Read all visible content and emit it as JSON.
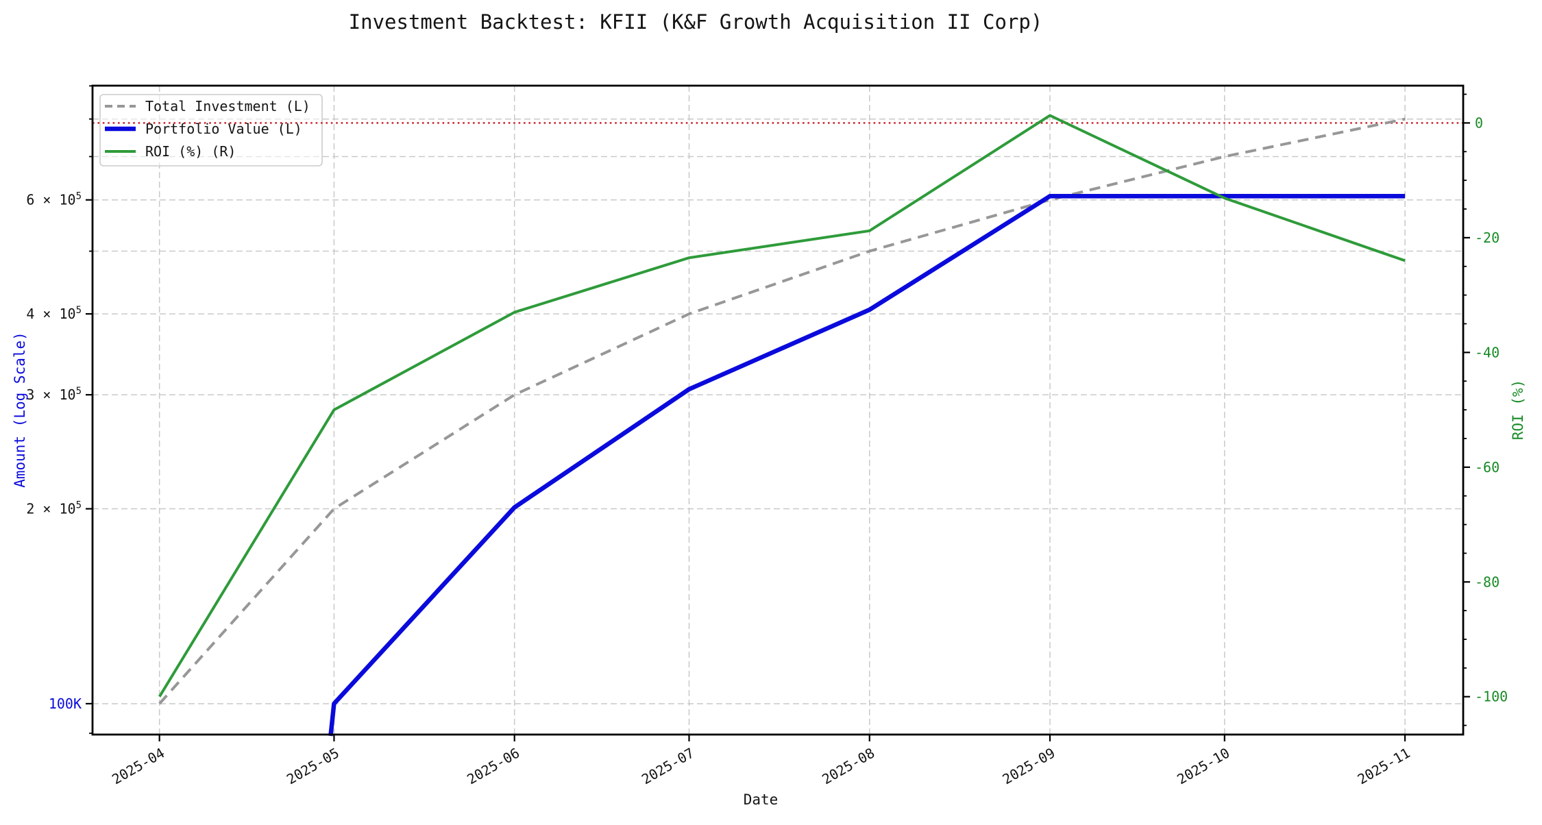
{
  "title": "Investment Backtest: KFII (K&F Growth Acquisition II Corp)",
  "chart_data": {
    "type": "line",
    "title": "Investment Backtest: KFII (K&F Growth Acquisition II Corp)",
    "x_label": "Date",
    "y_left_label": "Amount (Log Scale)",
    "y_right_label": "ROI (%)",
    "y_left_scale": "log",
    "y_right_scale": "linear",
    "grid": true,
    "legend_position": "upper left",
    "x_tick_labels": [
      "2025-04",
      "2025-05",
      "2025-06",
      "2025-07",
      "2025-08",
      "2025-09",
      "2025-10",
      "2025-11"
    ],
    "x_day_offsets": [
      0,
      30,
      61,
      91,
      122,
      153,
      183,
      214
    ],
    "x_range_days": [
      -11.5,
      224
    ],
    "y_left_range": [
      89600,
      900800
    ],
    "y_right_range": [
      -106.6,
      6.5
    ],
    "y_left_ticks": [
      {
        "value": 600000,
        "mantissa": "6 × 10",
        "exponent": "5",
        "color": "#141414"
      },
      {
        "value": 400000,
        "mantissa": "4 × 10",
        "exponent": "5",
        "color": "#141414"
      },
      {
        "value": 300000,
        "mantissa": "3 × 10",
        "exponent": "5",
        "color": "#141414"
      },
      {
        "value": 200000,
        "mantissa": "2 × 10",
        "exponent": "5",
        "color": "#141414"
      },
      {
        "value": 100000,
        "label": "100K",
        "color": "#0a0adc"
      }
    ],
    "y_left_minor_tick_values": [
      90000,
      500000,
      700000,
      800000,
      900000
    ],
    "y_left_grid_values": [
      100000,
      200000,
      300000,
      400000,
      500000,
      600000,
      700000,
      800000
    ],
    "y_right_major_ticks": [
      0,
      -20,
      -40,
      -60,
      -80,
      -100
    ],
    "y_right_minor_step": 5,
    "series": [
      {
        "name": "Total Investment (L)",
        "axis": "left",
        "color": "#979797",
        "style": "dashed",
        "width": 4,
        "values": [
          100000,
          200000,
          300000,
          400000,
          500000,
          600000,
          700000,
          800000
        ]
      },
      {
        "name": "Portfolio Value (L)",
        "axis": "left",
        "color": "#0a0adc",
        "style": "solid",
        "width": 6.5,
        "values": [
          null,
          100000,
          201000,
          306000,
          406000,
          608000,
          608000,
          608000
        ]
      },
      {
        "name": "ROI (%) (R)",
        "axis": "right",
        "color": "#2e9b3a",
        "style": "solid",
        "width": 4,
        "values": [
          -100,
          -50,
          -33,
          -23.5,
          -18.8,
          1.3,
          -13.1,
          -24
        ]
      }
    ],
    "zero_line": {
      "axis": "right",
      "value": 0,
      "color": "#cc2b33",
      "style": "dotted"
    }
  },
  "colors": {
    "left_axis_text": "#0a0adc",
    "right_axis_text": "#178a24",
    "tick_text": "#141414",
    "grid": "#c9c9c9",
    "spine": "#000000",
    "legend_border": "#cccccc"
  }
}
